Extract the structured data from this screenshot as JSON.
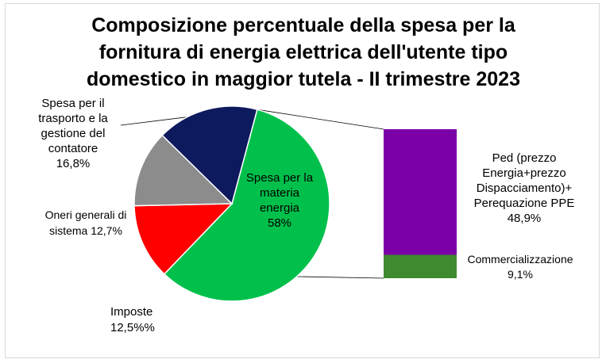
{
  "chart_data": {
    "type": "pie",
    "title_lines": [
      "Composizione percentuale della spesa per la",
      "fornitura di energia elettrica dell'utente tipo",
      "domestico in maggior tutela - II trimestre 2023"
    ],
    "pie": {
      "slices": [
        {
          "name": "Spesa per la materia energia",
          "value": 58,
          "color": "#00c04b",
          "label_lines": [
            "Spesa per la",
            "materia",
            "energia",
            "58%"
          ]
        },
        {
          "name": "Imposte",
          "value": 12.5,
          "color": "#ff0000",
          "label_lines": [
            "Imposte",
            "12,5%%"
          ]
        },
        {
          "name": "Oneri generali di sistema",
          "value": 12.7,
          "color": "#8c8c8c",
          "label_lines": [
            "Oneri generali di",
            "sistema 12,7%"
          ]
        },
        {
          "name": "Spesa per il trasporto e la gestione del contatore",
          "value": 16.8,
          "color": "#0e1a5e",
          "label_lines": [
            "Spesa per il",
            "trasporto e la",
            "gestione del",
            "contatore",
            "16,8%"
          ]
        }
      ]
    },
    "breakdown_bar": {
      "of_slice": "Spesa per la materia energia",
      "segments": [
        {
          "name": "Ped (prezzo Energia+prezzo Dispacciamento)+ Perequazione PPE",
          "value": 48.9,
          "color": "#7b00a8",
          "label_lines": [
            "Ped (prezzo",
            "Energia+prezzo",
            "Dispacciamento)+",
            "Perequazione PPE",
            "48,9%"
          ]
        },
        {
          "name": "Commercializzazione",
          "value": 9.1,
          "color": "#3f8a2e",
          "label_lines": [
            "Commercializzazione",
            "9,1%"
          ]
        }
      ]
    },
    "legend": "none"
  }
}
